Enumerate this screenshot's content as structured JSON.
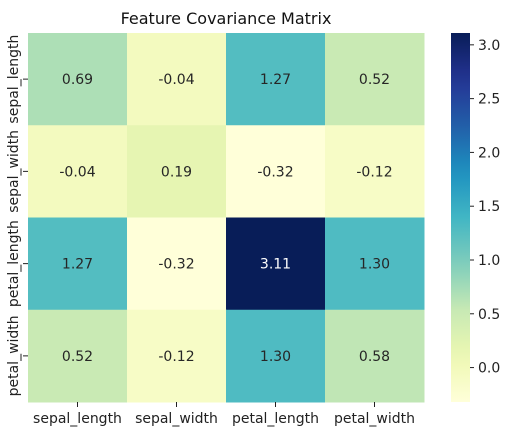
{
  "chart_data": {
    "type": "heatmap",
    "title": "Feature Covariance Matrix",
    "x_labels": [
      "sepal_length",
      "sepal_width",
      "petal_length",
      "petal_width"
    ],
    "y_labels": [
      "sepal_length",
      "sepal_width",
      "petal_length",
      "petal_width"
    ],
    "values": [
      [
        0.69,
        -0.04,
        1.27,
        0.52
      ],
      [
        -0.04,
        0.19,
        -0.32,
        -0.12
      ],
      [
        1.27,
        -0.32,
        3.11,
        1.3
      ],
      [
        0.52,
        -0.12,
        1.3,
        0.58
      ]
    ],
    "cell_text": [
      [
        "0.69",
        "-0.04",
        "1.27",
        "0.52"
      ],
      [
        "-0.04",
        "0.19",
        "-0.32",
        "-0.12"
      ],
      [
        "1.27",
        "-0.32",
        "3.11",
        "1.30"
      ],
      [
        "0.52",
        "-0.12",
        "1.30",
        "0.58"
      ]
    ],
    "colormap": "YlGnBu",
    "vmin": -0.32,
    "vmax": 3.11,
    "colorbar": {
      "ticks": [
        0.0,
        0.5,
        1.0,
        1.5,
        2.0,
        2.5,
        3.0
      ],
      "tick_labels": [
        "0.0",
        "0.5",
        "1.0",
        "1.5",
        "2.0",
        "2.5",
        "3.0"
      ],
      "placement": "right"
    },
    "grid": false,
    "legend": "none"
  }
}
